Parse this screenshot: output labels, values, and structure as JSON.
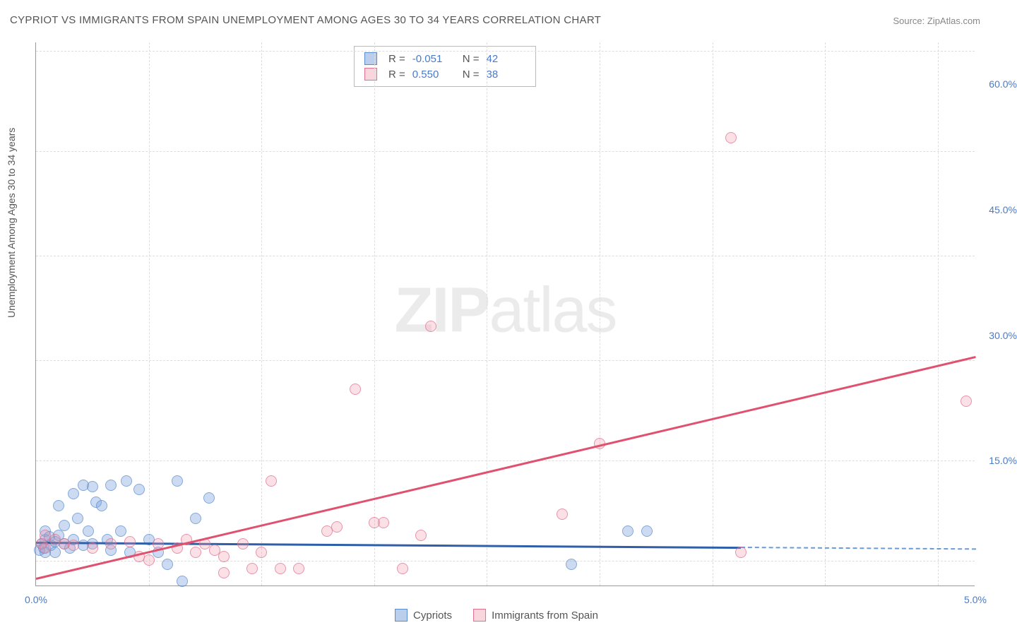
{
  "chart": {
    "type": "scatter-correlation",
    "title": "CYPRIOT VS IMMIGRANTS FROM SPAIN UNEMPLOYMENT AMONG AGES 30 TO 34 YEARS CORRELATION CHART",
    "source_label": "Source: ZipAtlas.com",
    "y_axis_label": "Unemployment Among Ages 30 to 34 years",
    "watermark": {
      "part1": "ZIP",
      "part2": "atlas"
    },
    "background_color": "#ffffff",
    "grid_color": "#dddddd",
    "axis_color": "#999999",
    "tick_label_color": "#4a7bc8",
    "title_color": "#555555",
    "xlim": [
      0.0,
      5.0
    ],
    "ylim": [
      0.0,
      65.0
    ],
    "x_ticks": [
      0.0,
      5.0
    ],
    "x_tick_labels": [
      "0.0%",
      "5.0%"
    ],
    "y_ticks": [
      15.0,
      30.0,
      45.0,
      60.0
    ],
    "y_tick_labels": [
      "15.0%",
      "30.0%",
      "45.0%",
      "60.0%"
    ],
    "y_gridlines": [
      3.0,
      15.0,
      27.0,
      39.5,
      52.0,
      64.0
    ],
    "x_gridlines": [
      0.6,
      1.2,
      1.8,
      2.4,
      3.0,
      3.6,
      4.2,
      4.8
    ],
    "series": [
      {
        "name": "Cypriots",
        "color_fill": "rgba(120,160,220,0.5)",
        "color_border": "#5a8bd0",
        "trend_color": "#2e5fa8",
        "R": "-0.051",
        "N": "42",
        "trendline": {
          "x1": 0.0,
          "y1": 5.3,
          "x2": 3.75,
          "y2": 4.7
        },
        "trendline_dash": {
          "x1": 3.75,
          "y1": 4.7,
          "x2": 5.0,
          "y2": 4.5
        },
        "points": [
          [
            0.02,
            4.2
          ],
          [
            0.03,
            5.0
          ],
          [
            0.04,
            4.5
          ],
          [
            0.05,
            5.5
          ],
          [
            0.05,
            6.5
          ],
          [
            0.07,
            5.8
          ],
          [
            0.08,
            4.8
          ],
          [
            0.1,
            4.0
          ],
          [
            0.1,
            5.2
          ],
          [
            0.12,
            6.0
          ],
          [
            0.12,
            9.5
          ],
          [
            0.15,
            5.0
          ],
          [
            0.15,
            7.2
          ],
          [
            0.18,
            4.5
          ],
          [
            0.2,
            5.5
          ],
          [
            0.2,
            11.0
          ],
          [
            0.22,
            8.0
          ],
          [
            0.25,
            4.8
          ],
          [
            0.25,
            12.0
          ],
          [
            0.28,
            6.5
          ],
          [
            0.3,
            5.0
          ],
          [
            0.3,
            11.8
          ],
          [
            0.32,
            10.0
          ],
          [
            0.35,
            9.5
          ],
          [
            0.38,
            5.5
          ],
          [
            0.4,
            4.2
          ],
          [
            0.45,
            6.5
          ],
          [
            0.48,
            12.5
          ],
          [
            0.5,
            4.0
          ],
          [
            0.55,
            11.5
          ],
          [
            0.6,
            5.5
          ],
          [
            0.65,
            4.0
          ],
          [
            0.7,
            2.5
          ],
          [
            0.75,
            12.5
          ],
          [
            0.78,
            0.5
          ],
          [
            0.85,
            8.0
          ],
          [
            0.92,
            10.5
          ],
          [
            2.85,
            2.5
          ],
          [
            3.15,
            6.5
          ],
          [
            3.25,
            6.5
          ],
          [
            0.4,
            12.0
          ],
          [
            0.05,
            4.0
          ]
        ]
      },
      {
        "name": "Immigrants from Spain",
        "color_fill": "rgba(240,150,170,0.4)",
        "color_border": "#e07090",
        "trend_color": "#e0506f",
        "R": "0.550",
        "N": "38",
        "trendline": {
          "x1": 0.0,
          "y1": 1.0,
          "x2": 5.0,
          "y2": 27.5
        },
        "points": [
          [
            0.03,
            5.0
          ],
          [
            0.05,
            4.5
          ],
          [
            0.05,
            6.0
          ],
          [
            0.1,
            5.5
          ],
          [
            0.15,
            5.0
          ],
          [
            0.2,
            4.8
          ],
          [
            0.3,
            4.5
          ],
          [
            0.4,
            5.0
          ],
          [
            0.5,
            5.2
          ],
          [
            0.55,
            3.5
          ],
          [
            0.6,
            3.0
          ],
          [
            0.65,
            5.0
          ],
          [
            0.75,
            4.5
          ],
          [
            0.8,
            5.5
          ],
          [
            0.85,
            4.0
          ],
          [
            0.9,
            5.0
          ],
          [
            0.95,
            4.2
          ],
          [
            1.0,
            3.5
          ],
          [
            1.1,
            5.0
          ],
          [
            1.15,
            2.0
          ],
          [
            1.2,
            4.0
          ],
          [
            1.25,
            12.5
          ],
          [
            1.3,
            2.0
          ],
          [
            1.4,
            2.0
          ],
          [
            1.55,
            6.5
          ],
          [
            1.6,
            7.0
          ],
          [
            1.7,
            23.5
          ],
          [
            1.8,
            7.5
          ],
          [
            1.85,
            7.5
          ],
          [
            1.95,
            2.0
          ],
          [
            2.05,
            6.0
          ],
          [
            2.1,
            31.0
          ],
          [
            2.8,
            8.5
          ],
          [
            3.0,
            17.0
          ],
          [
            3.7,
            53.5
          ],
          [
            3.75,
            4.0
          ],
          [
            4.95,
            22.0
          ],
          [
            1.0,
            1.5
          ]
        ]
      }
    ],
    "bottom_legend": [
      {
        "swatch": "blue",
        "label": "Cypriots"
      },
      {
        "swatch": "pink",
        "label": "Immigrants from Spain"
      }
    ]
  }
}
